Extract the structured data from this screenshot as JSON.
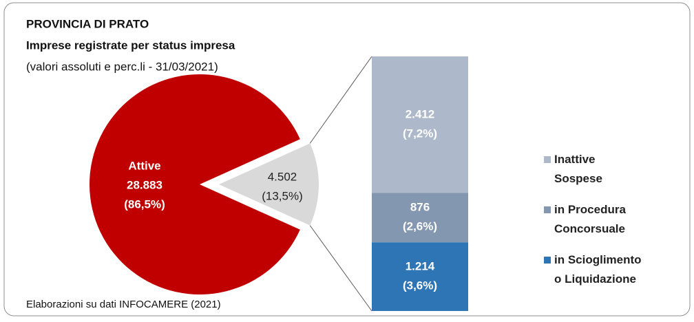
{
  "chart_data": {
    "type": "pie-of-bar",
    "title": "PROVINCIA DI PRATO",
    "subtitle": "Imprese registrate per status impresa",
    "note": "(valori assoluti e perc.li - 31/03/2021)",
    "source": "Elaborazioni su dati INFOCAMERE (2021)",
    "pie": {
      "categories": [
        "Attive",
        null
      ],
      "values": [
        28883,
        4502
      ],
      "value_labels": [
        "28.883",
        "4.502"
      ],
      "percents": [
        86.5,
        13.5
      ],
      "percent_labels": [
        "(86,5%)",
        "(13,5%)"
      ],
      "colors": [
        "#c00000",
        "#d9d9d9"
      ]
    },
    "bar": {
      "series": [
        {
          "name": "Inattive\nSospese",
          "color": "#adb9ca",
          "value": 2412,
          "value_label": "2.412",
          "percent": 7.2,
          "percent_label": "(7,2%)"
        },
        {
          "name": "in Procedura\nConcorsuale",
          "color": "#8497b0",
          "value": 876,
          "value_label": "876",
          "percent": 2.6,
          "percent_label": "(2,6%)"
        },
        {
          "name": "in Scioglimento\no Liquidazione",
          "color": "#2e75b6",
          "value": 1214,
          "value_label": "1.214",
          "percent": 3.6,
          "percent_label": "(3,6%)"
        }
      ]
    }
  }
}
